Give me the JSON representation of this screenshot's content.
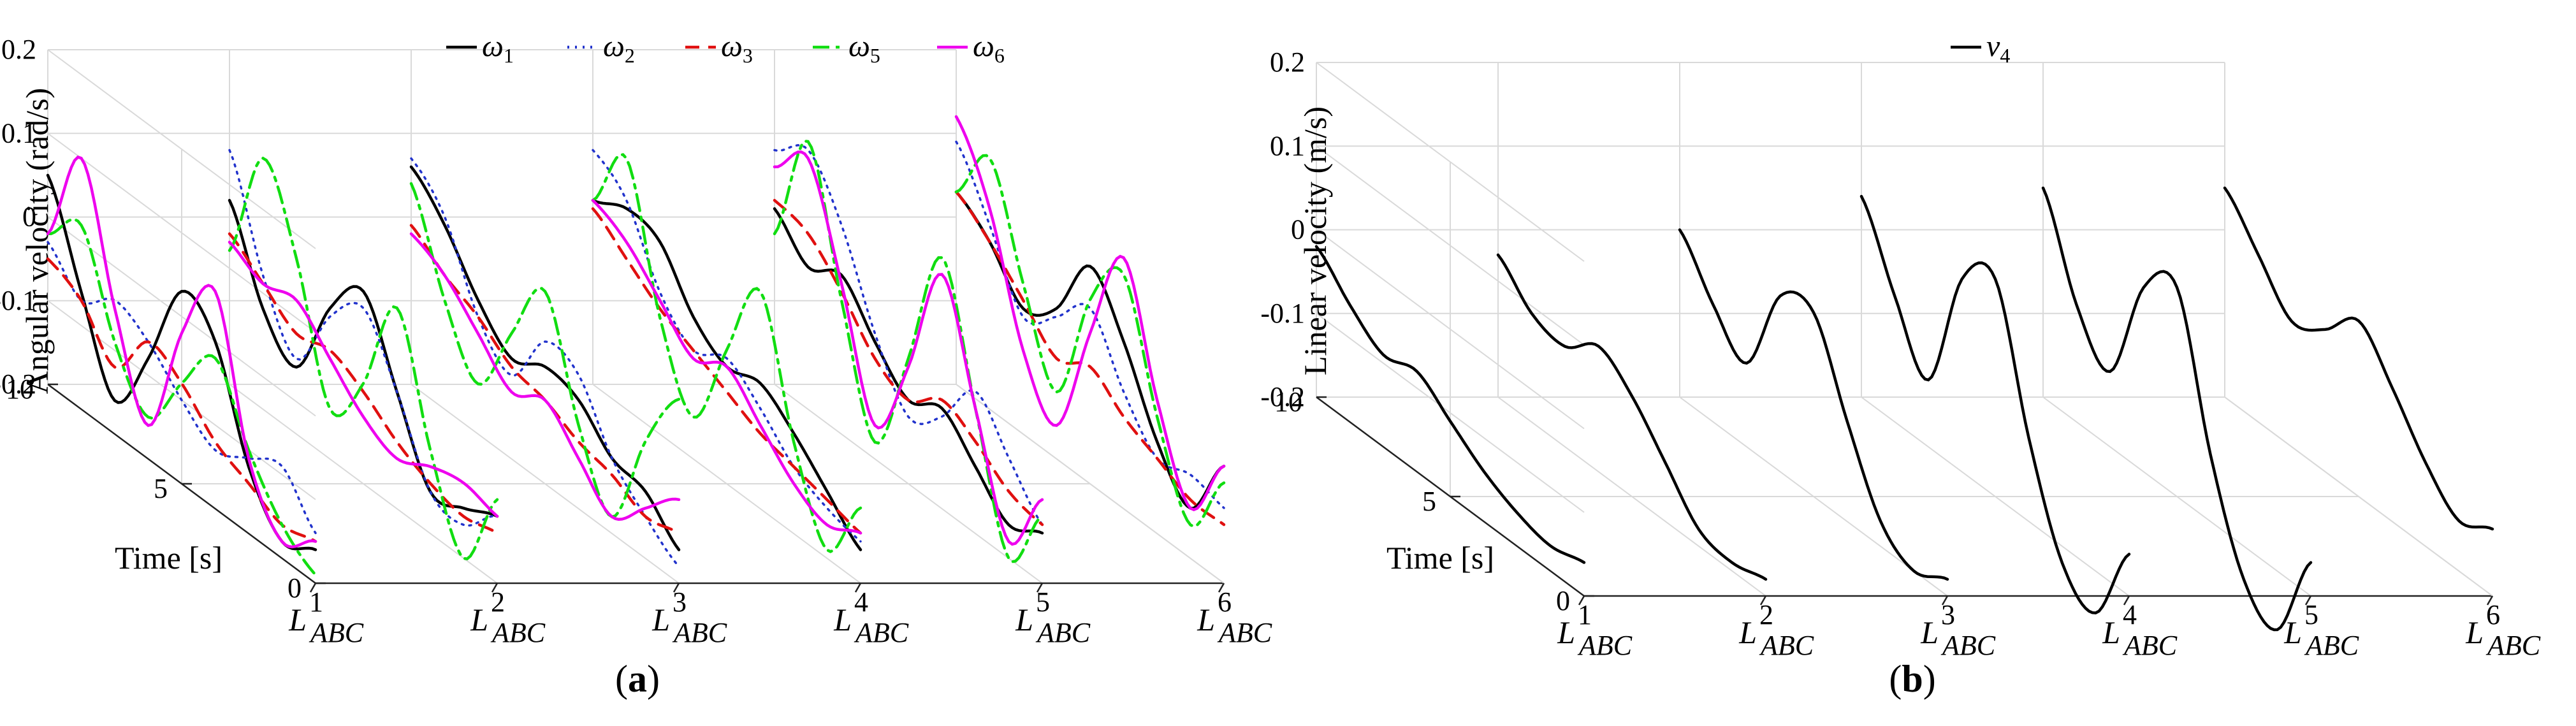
{
  "chart_data": [
    {
      "panel": "a",
      "type": "line",
      "subplot_label": "a",
      "ylabel": "Angular velocity (rad/s)",
      "tlabel": "Time [s]",
      "ylim": [
        -0.2,
        0.2
      ],
      "yticks": [
        "0.2",
        "0.1",
        "0",
        "-0.1",
        "-0.2"
      ],
      "tlim": [
        0,
        10
      ],
      "tticks": [
        "10",
        "5",
        "0"
      ],
      "categories": [
        {
          "base": "L",
          "sup": "1",
          "sub": "ABC"
        },
        {
          "base": "L",
          "sup": "2",
          "sub": "ABC"
        },
        {
          "base": "L",
          "sup": "3",
          "sub": "ABC"
        },
        {
          "base": "L",
          "sup": "4",
          "sub": "ABC"
        },
        {
          "base": "L",
          "sup": "5",
          "sub": "ABC"
        },
        {
          "base": "L",
          "sup": "6",
          "sub": "ABC"
        }
      ],
      "legend": [
        {
          "name": "ω",
          "sub": "1",
          "color": "#000000",
          "dash": "solid"
        },
        {
          "name": "ω",
          "sub": "2",
          "color": "#2233cc",
          "dash": "dotted"
        },
        {
          "name": "ω",
          "sub": "3",
          "color": "#e01010",
          "dash": "dashed"
        },
        {
          "name": "ω",
          "sub": "5",
          "color": "#11dd11",
          "dash": "dashdot"
        },
        {
          "name": "ω",
          "sub": "6",
          "color": "#ee00ee",
          "dash": "solid"
        }
      ],
      "series": [
        {
          "name": "ω1",
          "segments": [
            [
              0.05,
              -0.06,
              -0.16,
              -0.08,
              0.03,
              0.0,
              -0.12,
              -0.18,
              -0.16
            ],
            [
              0.02,
              -0.08,
              -0.12,
              -0.02,
              0.03,
              -0.06,
              -0.15,
              -0.14,
              -0.12
            ],
            [
              0.06,
              0.02,
              -0.04,
              -0.08,
              -0.06,
              -0.07,
              -0.11,
              -0.12,
              -0.16
            ],
            [
              0.02,
              0.04,
              0.03,
              -0.03,
              -0.06,
              -0.05,
              -0.08,
              -0.12,
              -0.16
            ],
            [
              0.01,
              -0.03,
              -0.01,
              -0.06,
              -0.1,
              -0.08,
              -0.12,
              -0.16,
              -0.14
            ],
            [
              0.03,
              0.0,
              -0.05,
              -0.02,
              0.06,
              0.0,
              -0.09,
              -0.14,
              -0.06
            ]
          ]
        },
        {
          "name": "ω2",
          "segments": [
            [
              -0.03,
              -0.07,
              -0.04,
              -0.06,
              -0.1,
              -0.13,
              -0.11,
              -0.09,
              -0.14
            ],
            [
              0.08,
              -0.04,
              -0.11,
              -0.03,
              0.01,
              -0.06,
              -0.15,
              -0.16,
              -0.12
            ],
            [
              0.07,
              0.03,
              -0.06,
              -0.1,
              -0.03,
              -0.04,
              -0.11,
              -0.15,
              -0.18
            ],
            [
              0.08,
              0.05,
              -0.03,
              -0.07,
              -0.05,
              -0.08,
              -0.12,
              -0.14,
              -0.15
            ],
            [
              0.08,
              0.11,
              0.05,
              -0.05,
              -0.12,
              -0.09,
              -0.03,
              -0.08,
              -0.13
            ],
            [
              0.09,
              0.02,
              -0.06,
              -0.03,
              0.01,
              -0.06,
              -0.11,
              -0.1,
              -0.11
            ]
          ]
        },
        {
          "name": "ω3",
          "segments": [
            [
              -0.05,
              -0.07,
              -0.12,
              -0.06,
              -0.08,
              -0.12,
              -0.14,
              -0.16,
              -0.15
            ],
            [
              -0.02,
              -0.05,
              -0.08,
              -0.07,
              -0.09,
              -0.12,
              -0.14,
              -0.15,
              -0.14
            ],
            [
              -0.01,
              -0.04,
              -0.06,
              -0.09,
              -0.1,
              -0.12,
              -0.13,
              -0.15,
              -0.14
            ],
            [
              0.01,
              -0.02,
              -0.05,
              -0.07,
              -0.09,
              -0.11,
              -0.12,
              -0.13,
              -0.14
            ],
            [
              0.02,
              0.01,
              -0.03,
              -0.08,
              -0.1,
              -0.07,
              -0.09,
              -0.12,
              -0.13
            ],
            [
              0.03,
              0.0,
              -0.04,
              -0.08,
              -0.06,
              -0.09,
              -0.11,
              -0.13,
              -0.13
            ]
          ]
        },
        {
          "name": "ω5",
          "segments": [
            [
              -0.02,
              0.02,
              -0.09,
              -0.15,
              -0.08,
              -0.02,
              -0.1,
              -0.16,
              -0.19
            ],
            [
              -0.04,
              0.1,
              0.01,
              -0.14,
              -0.08,
              0.04,
              -0.1,
              -0.2,
              -0.1
            ],
            [
              0.04,
              -0.07,
              -0.14,
              -0.05,
              0.03,
              -0.1,
              -0.18,
              -0.06,
              0.02
            ],
            [
              0.02,
              0.1,
              -0.06,
              -0.15,
              -0.04,
              0.06,
              -0.09,
              -0.19,
              -0.11
            ],
            [
              -0.02,
              0.12,
              -0.04,
              -0.18,
              -0.05,
              0.1,
              -0.05,
              -0.2,
              -0.12
            ],
            [
              0.03,
              0.1,
              -0.02,
              -0.12,
              0.02,
              0.08,
              -0.06,
              -0.16,
              -0.08
            ]
          ]
        },
        {
          "name": "ω6",
          "segments": [
            [
              -0.02,
              0.1,
              -0.05,
              -0.16,
              -0.02,
              0.06,
              -0.11,
              -0.18,
              -0.15
            ],
            [
              -0.03,
              -0.05,
              -0.04,
              -0.08,
              -0.12,
              -0.14,
              -0.12,
              -0.11,
              -0.12
            ],
            [
              -0.02,
              -0.04,
              -0.08,
              -0.12,
              -0.1,
              -0.14,
              -0.18,
              -0.14,
              -0.1
            ],
            [
              0.02,
              0.0,
              -0.04,
              -0.08,
              -0.06,
              -0.1,
              -0.14,
              -0.16,
              -0.14
            ],
            [
              0.06,
              0.1,
              -0.02,
              -0.16,
              -0.06,
              0.08,
              -0.05,
              -0.18,
              -0.1
            ],
            [
              0.12,
              0.04,
              -0.1,
              -0.16,
              -0.02,
              0.1,
              -0.04,
              -0.14,
              -0.06
            ]
          ]
        }
      ]
    },
    {
      "panel": "b",
      "type": "line",
      "subplot_label": "b",
      "ylabel": "Linear velocity (m/s)",
      "tlabel": "Time [s]",
      "ylim": [
        -0.2,
        0.2
      ],
      "yticks": [
        "0.2",
        "0.1",
        "0",
        "-0.1",
        "-0.2"
      ],
      "tlim": [
        0,
        10
      ],
      "tticks": [
        "10",
        "5",
        "0"
      ],
      "categories": [
        {
          "base": "L",
          "sup": "1",
          "sub": "ABC"
        },
        {
          "base": "L",
          "sup": "2",
          "sub": "ABC"
        },
        {
          "base": "L",
          "sup": "3",
          "sub": "ABC"
        },
        {
          "base": "L",
          "sup": "4",
          "sub": "ABC"
        },
        {
          "base": "L",
          "sup": "5",
          "sub": "ABC"
        },
        {
          "base": "L",
          "sup": "6",
          "sub": "ABC"
        }
      ],
      "legend": [
        {
          "name": "v",
          "sub": "4",
          "color": "#000000",
          "dash": "solid"
        }
      ],
      "series": [
        {
          "name": "v4",
          "segments": [
            [
              -0.02,
              -0.06,
              -0.09,
              -0.08,
              -0.11,
              -0.14,
              -0.16,
              -0.17,
              -0.16
            ],
            [
              -0.03,
              -0.07,
              -0.08,
              -0.05,
              -0.08,
              -0.13,
              -0.18,
              -0.19,
              -0.18
            ],
            [
              0.0,
              -0.06,
              -0.1,
              0.01,
              0.02,
              -0.08,
              -0.17,
              -0.2,
              -0.18
            ],
            [
              0.04,
              -0.05,
              -0.12,
              0.03,
              0.06,
              -0.1,
              -0.22,
              -0.25,
              -0.15
            ],
            [
              0.05,
              -0.06,
              -0.11,
              0.02,
              0.05,
              -0.12,
              -0.24,
              -0.27,
              -0.16
            ],
            [
              0.05,
              0.0,
              -0.05,
              -0.03,
              0.01,
              -0.04,
              -0.1,
              -0.14,
              -0.12
            ]
          ]
        }
      ]
    }
  ]
}
